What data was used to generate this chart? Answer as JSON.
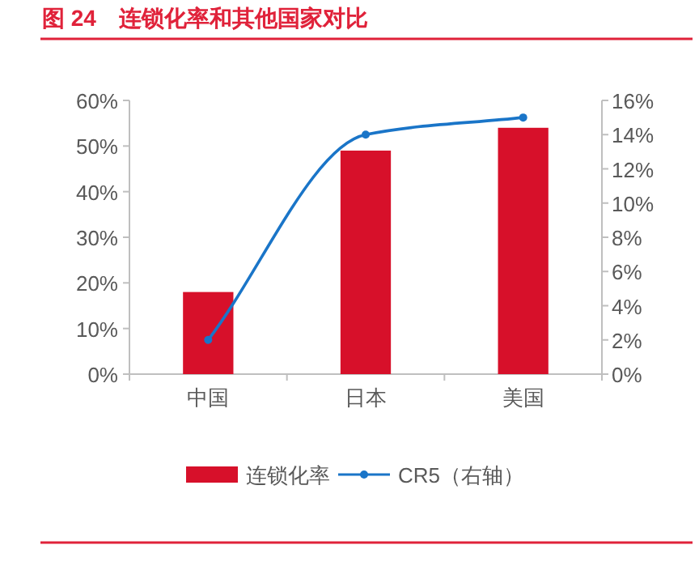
{
  "chart_data": {
    "type": "bar",
    "title": "图 24　连锁化率和其他国家对比",
    "categories": [
      "中国",
      "日本",
      "美国"
    ],
    "series": [
      {
        "name": "连锁化率",
        "color": "#d7102a",
        "values": [
          18,
          49,
          54
        ]
      },
      {
        "name": "CR5（右轴）",
        "type": "line",
        "axis": "y2",
        "color": "#1a75c8",
        "values": [
          2,
          14,
          15
        ]
      }
    ],
    "ylim": [
      0,
      60
    ],
    "yticks": [
      {
        "value": 0,
        "label": "0%"
      },
      {
        "value": 10,
        "label": "10%"
      },
      {
        "value": 20,
        "label": "20%"
      },
      {
        "value": 30,
        "label": "30%"
      },
      {
        "value": 40,
        "label": "40%"
      },
      {
        "value": 50,
        "label": "50%"
      },
      {
        "value": 60,
        "label": "60%"
      }
    ],
    "y2lim": [
      0,
      16
    ],
    "y2ticks": [
      {
        "value": 0,
        "label": "0%"
      },
      {
        "value": 2,
        "label": "2%"
      },
      {
        "value": 4,
        "label": "4%"
      },
      {
        "value": 6,
        "label": "6%"
      },
      {
        "value": 8,
        "label": "8%"
      },
      {
        "value": 10,
        "label": "10%"
      },
      {
        "value": 12,
        "label": "12%"
      },
      {
        "value": 14,
        "label": "14%"
      },
      {
        "value": 16,
        "label": "16%"
      }
    ],
    "grid": false,
    "legend": "bottom",
    "marker": "circle",
    "line_style": "solid"
  }
}
